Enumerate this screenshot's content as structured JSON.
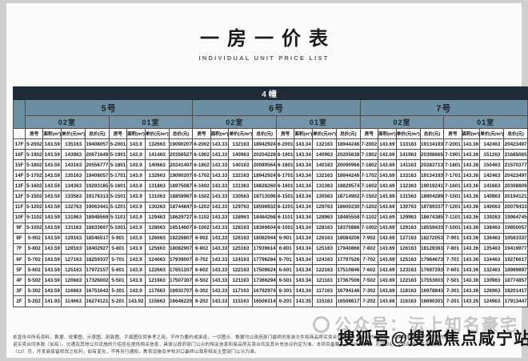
{
  "title": {
    "zh": "一房一价表",
    "en": "INDIVIDUAL UNIT PRICE LIST"
  },
  "table": {
    "building": "4幢",
    "units": [
      "5号",
      "6号",
      "7号"
    ],
    "rooms": [
      "02室",
      "01室"
    ],
    "columns": [
      "房号",
      "面积(m²)",
      "单价(元/m²)",
      "总价(元)"
    ],
    "rows": [
      {
        "floor": "17F",
        "cells": [
          "5-2002",
          "143.59",
          "135163",
          "19408057",
          "5-2001",
          "143.9",
          "132663",
          "19090207",
          "6-2002",
          "143.33",
          "132163",
          "18942924",
          "6-2001",
          "143.34",
          "132163",
          "18944246",
          "7-2002",
          "143.69",
          "133163",
          "19134193",
          "7-2001",
          "143.36",
          "142463",
          "20423497"
        ]
      },
      {
        "floor": "16F",
        "cells": [
          "5-1902",
          "143.59",
          "143963",
          "20671649",
          "5-1901",
          "143.9",
          "141463",
          "20356527",
          "6-1902",
          "143.33",
          "140963",
          "20204228",
          "6-1901",
          "143.34",
          "140963",
          "20205638",
          "7-1902",
          "143.69",
          "141963",
          "20398665",
          "7-1901",
          "143.36",
          "151263",
          "21685065"
        ]
      },
      {
        "floor": "15F",
        "cells": [
          "5-1802",
          "143.59",
          "143163",
          "20556777",
          "5-1801",
          "143.9",
          "140663",
          "20241407",
          "6-1802",
          "143.33",
          "140163",
          "20089564",
          "6-1801",
          "143.34",
          "140163",
          "20090966",
          "7-1802",
          "143.69",
          "141163",
          "20283713",
          "7-1801",
          "143.36",
          "150463",
          "21570377"
        ]
      },
      {
        "floor": "14F",
        "cells": [
          "5-1702",
          "143.59",
          "135163",
          "19408057",
          "5-1701",
          "143.9",
          "132663",
          "19090207",
          "6-1702",
          "143.33",
          "132163",
          "18942924",
          "6-1701",
          "143.34",
          "132163",
          "18944246",
          "7-1702",
          "143.69",
          "133163",
          "19134193",
          "7-1701",
          "143.36",
          "142463",
          "20423497"
        ]
      },
      {
        "floor": "13F",
        "cells": [
          "5-1602",
          "143.59",
          "134363",
          "19293185",
          "5-1601",
          "143.9",
          "131863",
          "18975087",
          "6-1602",
          "143.33",
          "131363",
          "18828260",
          "6-1601",
          "143.34",
          "131363",
          "18829574",
          "7-1602",
          "143.69",
          "132363",
          "19019241",
          "7-1601",
          "143.36",
          "141663",
          "20308809"
        ]
      },
      {
        "floor": "12F",
        "cells": [
          "5-1502",
          "143.59",
          "133563",
          "19178313",
          "5-1501",
          "143.9",
          "131063",
          "18859967",
          "6-1502",
          "143.33",
          "130563",
          "18713596",
          "6-1501",
          "143.34",
          "130563",
          "18714902",
          "7-1502",
          "143.69",
          "131563",
          "18904289",
          "7-1501",
          "143.36",
          "140863",
          "20194121"
        ]
      },
      {
        "floor": "11F",
        "cells": [
          "5-1202",
          "143.59",
          "132763",
          "19063441",
          "5-1201",
          "143.9",
          "130263",
          "18744847",
          "6-1202",
          "143.33",
          "129763",
          "18598932",
          "6-1201",
          "143.34",
          "129763",
          "18600230",
          "7-1202",
          "143.69",
          "130763",
          "18789337",
          "7-1201",
          "143.36",
          "140063",
          "20079433"
        ]
      },
      {
        "floor": "10F",
        "cells": [
          "5-1102",
          "143.59",
          "131963",
          "18948569",
          "5-1101",
          "143.9",
          "129463",
          "18629727",
          "6-1102",
          "143.33",
          "128963",
          "18484268",
          "6-1101",
          "143.34",
          "128963",
          "18485558",
          "7-1102",
          "143.69",
          "129963",
          "18674385",
          "7-1101",
          "143.36",
          "139263",
          "19964745"
        ]
      },
      {
        "floor": "9F",
        "cells": [
          "5-1002",
          "143.59",
          "131163",
          "18833697",
          "5-1001",
          "143.9",
          "128663",
          "18514607",
          "6-1002",
          "143.33",
          "128163",
          "18369604",
          "6-1001",
          "143.34",
          "128163",
          "18370886",
          "7-1002",
          "143.69",
          "129163",
          "18559433",
          "7-1001",
          "143.36",
          "138463",
          "19850057"
        ]
      },
      {
        "floor": "8F",
        "cells": [
          "5-902",
          "143.59",
          "129163",
          "18546517",
          "5-901",
          "143.9",
          "126663",
          "18226807",
          "6-902",
          "143.33",
          "126163",
          "18082944",
          "6-901",
          "143.34",
          "126163",
          "18084206",
          "7-902",
          "143.69",
          "127163",
          "18272053",
          "7-901",
          "143.36",
          "136463",
          "19563337"
        ]
      },
      {
        "floor": "7F",
        "cells": [
          "5-802",
          "143.59",
          "128163",
          "18402927",
          "5-801",
          "143.9",
          "125663",
          "18082907",
          "6-802",
          "143.33",
          "125163",
          "17939614",
          "6-801",
          "143.34",
          "125163",
          "17940866",
          "7-802",
          "143.69",
          "126163",
          "18128363",
          "7-801",
          "143.36",
          "135463",
          "19419977"
        ]
      },
      {
        "floor": "6F",
        "cells": [
          "5-702",
          "143.59",
          "127163",
          "18259337",
          "5-701",
          "143.9",
          "124663",
          "17939007",
          "6-702",
          "143.33",
          "124163",
          "17796284",
          "6-701",
          "143.34",
          "124163",
          "17797526",
          "7-702",
          "143.69",
          "125163",
          "17984673",
          "7-701",
          "143.36",
          "134463",
          "19276617"
        ]
      },
      {
        "floor": "5F",
        "cells": [
          "5-602",
          "143.59",
          "125163",
          "17972157",
          "5-601",
          "143.9",
          "122663",
          "17651207",
          "6-602",
          "143.33",
          "122163",
          "17509624",
          "6-601",
          "143.34",
          "122163",
          "17510846",
          "7-602",
          "143.69",
          "123163",
          "17697293",
          "7-601",
          "143.36",
          "132463",
          "18989897"
        ]
      },
      {
        "floor": "4F",
        "cells": [
          "5-502",
          "143.59",
          "120663",
          "17326002",
          "5-501",
          "143.9",
          "121663",
          "17507307",
          "6-502",
          "143.33",
          "121163",
          "17366294",
          "6-501",
          "143.34",
          "121163",
          "17367506",
          "7-502",
          "143.69",
          "122163",
          "17553603",
          "7-501",
          "143.36",
          "130963",
          "18774857"
        ]
      },
      {
        "floor": "3F",
        "cells": [
          "5-302",
          "143.59",
          "116663",
          "16751642",
          "5-301",
          "143.9",
          "117663",
          "16931707",
          "6-302",
          "143.33",
          "117163",
          "16792974",
          "6-301",
          "143.34",
          "117163",
          "16794146",
          "7-302",
          "143.69",
          "118163",
          "16978843",
          "7-301",
          "143.36",
          "126963",
          "18201417"
        ]
      },
      {
        "floor": "2F",
        "cells": [
          "5-202",
          "141.93",
          "114663",
          "16274121",
          "5-201",
          "143.92",
          "115663",
          "16646220",
          "6-202",
          "143.33",
          "115163",
          "16506314",
          "6-201",
          "143.35",
          "115163",
          "16508617",
          "7-202",
          "143.68",
          "116163",
          "16690301",
          "7-201",
          "143.35",
          "124963",
          "17913447"
        ]
      }
    ]
  },
  "footnotes": [
    "本宣传中所有资料、数据、效果图、示意图、剖面图、平面图仅供参考之用，不作为要约或承诺，一切图示、数据均以政府部门最终的批准文件和商品房买卖合同及其补充协议约定为准，相关配套内容不作为要约或承",
    "诺买卖合同条款（如有）。交通及其他公共设施的介绍旨在提供相关信息，具体以政府部门公示的相关信息和商品房买卖合同及其补充协议约定为准。本项目备案名为（267街坊：苏河世纪，275街坊：苏河瑞璟）",
    "（12）月，开发商保留修改之权利，如有变化，不再另行通知，教育设施及学校对口最终以政府相关主管部门公示为准。"
  ],
  "watermarks": {
    "official_account": "公众号：沄上知名豪宅",
    "sohu": "搜狐号@搜狐焦点咸宁站"
  },
  "colors": {
    "header_dark": "#1f2b37",
    "header_blue": "#6d8fa3",
    "header_blue_light": "#7495a8",
    "page_bg": "#cfcfcf"
  }
}
